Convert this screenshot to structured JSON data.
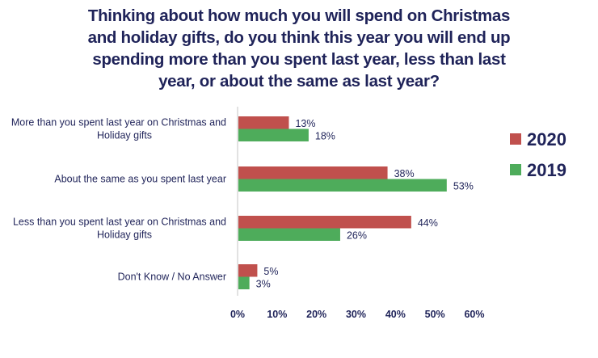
{
  "chart_data": {
    "type": "bar",
    "orientation": "horizontal",
    "title": "Thinking about how much you will spend on Christmas and holiday gifts, do you think this year you will end up spending more than you spent last year, less than last year, or about the same as last year?",
    "categories": [
      [
        "More than you spent last year on Christmas and",
        "Holiday gifts"
      ],
      [
        "About the same as you spent last year"
      ],
      [
        "Less than you spent last year on Christmas and",
        "Holiday gifts"
      ],
      [
        "Don't Know / No Answer"
      ]
    ],
    "series": [
      {
        "name": "2020",
        "color": "#c0504d",
        "values": [
          13,
          38,
          44,
          5
        ]
      },
      {
        "name": "2019",
        "color": "#4eac5b",
        "values": [
          18,
          53,
          26,
          3
        ]
      }
    ],
    "value_suffix": "%",
    "xlabel": "",
    "ylabel": "",
    "xlim": [
      0,
      60
    ],
    "xticks": [
      "0%",
      "10%",
      "20%",
      "30%",
      "40%",
      "50%",
      "60%"
    ],
    "grid": false,
    "legend": "right"
  }
}
